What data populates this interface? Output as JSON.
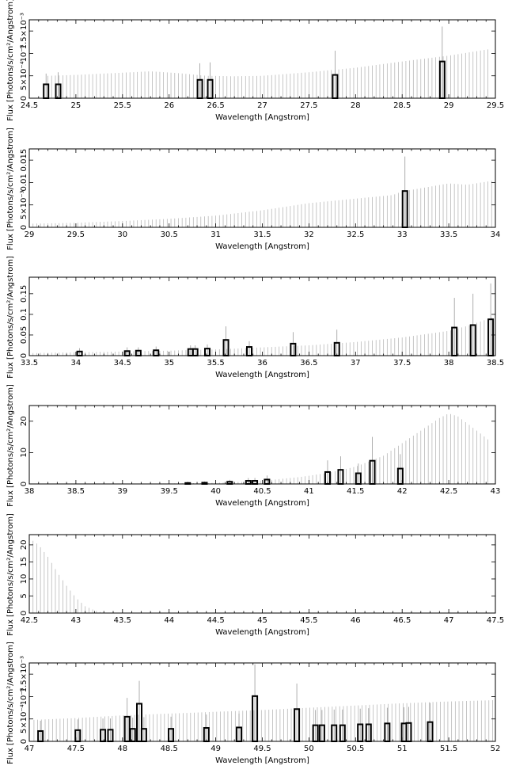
{
  "chart_data": [
    {
      "type": "histogram-with-errorbars",
      "xlabel": "Wavelength [Angstrom]",
      "ylabel": "Flux [Photons/s/cm²/Angstrom]",
      "xlim": [
        24.5,
        29.5
      ],
      "ylim": [
        0,
        0.00175
      ],
      "xticks": [
        {
          "v": 24.5,
          "t": "24.5"
        },
        {
          "v": 25,
          "t": "25"
        },
        {
          "v": 25.5,
          "t": "25.5"
        },
        {
          "v": 26,
          "t": "26"
        },
        {
          "v": 26.5,
          "t": "26.5"
        },
        {
          "v": 27,
          "t": "27"
        },
        {
          "v": 27.5,
          "t": "27.5"
        },
        {
          "v": 28,
          "t": "28"
        },
        {
          "v": 28.5,
          "t": "28.5"
        },
        {
          "v": 29,
          "t": "29"
        },
        {
          "v": 29.5,
          "t": "29.5"
        }
      ],
      "yticks": [
        {
          "v": 0,
          "t": "0"
        },
        {
          "v": 0.0005,
          "t": "5×10⁻⁴"
        },
        {
          "v": 0.001,
          "t": "10⁻³"
        },
        {
          "v": 0.0015,
          "t": "1.5×10⁻³"
        }
      ],
      "error_envelope": [
        [
          24.7,
          0.0005
        ],
        [
          25.0,
          0.00052
        ],
        [
          25.5,
          0.00057
        ],
        [
          25.8,
          0.0006
        ],
        [
          26.1,
          0.00056
        ],
        [
          26.4,
          0.0005
        ],
        [
          26.7,
          0.00049
        ],
        [
          27.0,
          0.0005
        ],
        [
          27.5,
          0.00058
        ],
        [
          28.0,
          0.00068
        ],
        [
          28.5,
          0.00082
        ],
        [
          29.0,
          0.00095
        ],
        [
          29.45,
          0.0011
        ]
      ],
      "detections": [
        {
          "x": 24.68,
          "y": 0.00031,
          "err": 0.00055
        },
        {
          "x": 24.81,
          "y": 0.00031,
          "err": 0.00058
        },
        {
          "x": 26.33,
          "y": 0.00041,
          "err": 0.00078
        },
        {
          "x": 26.44,
          "y": 0.00041,
          "err": 0.0008
        },
        {
          "x": 27.78,
          "y": 0.00052,
          "err": 0.00106
        },
        {
          "x": 28.93,
          "y": 0.00082,
          "err": 0.0016
        }
      ]
    },
    {
      "type": "histogram-with-errorbars",
      "xlabel": "Wavelength [Angstrom]",
      "ylabel": "Flux [Photons/s/cm²/Angstrom]",
      "xlim": [
        29,
        34
      ],
      "ylim": [
        0,
        0.0175
      ],
      "xticks": [
        {
          "v": 29,
          "t": "29"
        },
        {
          "v": 29.5,
          "t": "29.5"
        },
        {
          "v": 30,
          "t": "30"
        },
        {
          "v": 30.5,
          "t": "30.5"
        },
        {
          "v": 31,
          "t": "31"
        },
        {
          "v": 31.5,
          "t": "31.5"
        },
        {
          "v": 32,
          "t": "32"
        },
        {
          "v": 32.5,
          "t": "32.5"
        },
        {
          "v": 33,
          "t": "33"
        },
        {
          "v": 33.5,
          "t": "33.5"
        },
        {
          "v": 34,
          "t": "34"
        }
      ],
      "yticks": [
        {
          "v": 0,
          "t": "0"
        },
        {
          "v": 0.005,
          "t": "5×10⁻³"
        },
        {
          "v": 0.01,
          "t": "0.01"
        },
        {
          "v": 0.015,
          "t": "0.015"
        }
      ],
      "error_envelope": [
        [
          29.0,
          0.0008
        ],
        [
          29.5,
          0.001
        ],
        [
          30.0,
          0.0014
        ],
        [
          30.5,
          0.0019
        ],
        [
          31.0,
          0.0026
        ],
        [
          31.5,
          0.0038
        ],
        [
          32.0,
          0.0054
        ],
        [
          32.5,
          0.0064
        ],
        [
          32.9,
          0.0072
        ],
        [
          33.0,
          0.008
        ],
        [
          33.5,
          0.0098
        ],
        [
          33.7,
          0.0095
        ],
        [
          34.0,
          0.0105
        ]
      ],
      "detections": [
        {
          "x": 33.03,
          "y": 0.0081,
          "err": 0.0158
        }
      ]
    },
    {
      "type": "histogram-with-errorbars",
      "xlabel": "Wavelength [Angstrom]",
      "ylabel": "Flux [Photons/s/cm²/Angstrom]",
      "xlim": [
        33.5,
        38.5
      ],
      "ylim": [
        0,
        0.19
      ],
      "xticks": [
        {
          "v": 33.5,
          "t": "33.5"
        },
        {
          "v": 34,
          "t": "34"
        },
        {
          "v": 34.5,
          "t": "34.5"
        },
        {
          "v": 35,
          "t": "35"
        },
        {
          "v": 35.5,
          "t": "35.5"
        },
        {
          "v": 36,
          "t": "36"
        },
        {
          "v": 36.5,
          "t": "36.5"
        },
        {
          "v": 37,
          "t": "37"
        },
        {
          "v": 37.5,
          "t": "37.5"
        },
        {
          "v": 38,
          "t": "38"
        },
        {
          "v": 38.5,
          "t": "38.5"
        }
      ],
      "yticks": [
        {
          "v": 0,
          "t": "0"
        },
        {
          "v": 0.05,
          "t": "0.05"
        },
        {
          "v": 0.1,
          "t": "0.1"
        },
        {
          "v": 0.15,
          "t": "0.15"
        }
      ],
      "error_envelope": [
        [
          33.5,
          0.006
        ],
        [
          34.0,
          0.008
        ],
        [
          34.5,
          0.01
        ],
        [
          35.0,
          0.012
        ],
        [
          35.5,
          0.015
        ],
        [
          36.0,
          0.02
        ],
        [
          36.5,
          0.025
        ],
        [
          37.0,
          0.033
        ],
        [
          37.5,
          0.044
        ],
        [
          38.0,
          0.06
        ],
        [
          38.2,
          0.072
        ],
        [
          38.5,
          0.095
        ]
      ],
      "detections": [
        {
          "x": 34.04,
          "y": 0.01,
          "err": 0.018
        },
        {
          "x": 34.55,
          "y": 0.011,
          "err": 0.02
        },
        {
          "x": 34.67,
          "y": 0.012,
          "err": 0.02
        },
        {
          "x": 34.86,
          "y": 0.013,
          "err": 0.022
        },
        {
          "x": 35.23,
          "y": 0.016,
          "err": 0.025
        },
        {
          "x": 35.28,
          "y": 0.016,
          "err": 0.025
        },
        {
          "x": 35.41,
          "y": 0.017,
          "err": 0.027
        },
        {
          "x": 35.61,
          "y": 0.038,
          "err": 0.071
        },
        {
          "x": 35.86,
          "y": 0.021,
          "err": 0.035
        },
        {
          "x": 36.33,
          "y": 0.029,
          "err": 0.057
        },
        {
          "x": 36.8,
          "y": 0.031,
          "err": 0.063
        },
        {
          "x": 38.06,
          "y": 0.068,
          "err": 0.14
        },
        {
          "x": 38.26,
          "y": 0.074,
          "err": 0.15
        },
        {
          "x": 38.45,
          "y": 0.088,
          "err": 0.175
        }
      ]
    },
    {
      "type": "histogram-with-errorbars",
      "xlabel": "Wavelength [Angstrom]",
      "ylabel": "Flux [Photons/s/cm²/Angstrom]",
      "xlim": [
        38,
        43
      ],
      "ylim": [
        0,
        25
      ],
      "xticks": [
        {
          "v": 38,
          "t": "38"
        },
        {
          "v": 38.5,
          "t": "38.5"
        },
        {
          "v": 39,
          "t": "39"
        },
        {
          "v": 39.5,
          "t": "39.5"
        },
        {
          "v": 40,
          "t": "40"
        },
        {
          "v": 40.5,
          "t": "40.5"
        },
        {
          "v": 41,
          "t": "41"
        },
        {
          "v": 41.5,
          "t": "41.5"
        },
        {
          "v": 42,
          "t": "42"
        },
        {
          "v": 42.5,
          "t": "42.5"
        },
        {
          "v": 43,
          "t": "43"
        }
      ],
      "yticks": [
        {
          "v": 0,
          "t": "0"
        },
        {
          "v": 10,
          "t": "10"
        },
        {
          "v": 20,
          "t": "20"
        }
      ],
      "error_envelope": [
        [
          38.0,
          0.05
        ],
        [
          39.0,
          0.08
        ],
        [
          39.5,
          0.15
        ],
        [
          40.0,
          0.35
        ],
        [
          40.3,
          0.7
        ],
        [
          40.6,
          1.3
        ],
        [
          40.9,
          2.2
        ],
        [
          41.2,
          3.5
        ],
        [
          41.5,
          5.5
        ],
        [
          41.8,
          9.0
        ],
        [
          42.0,
          13.0
        ],
        [
          42.2,
          17.0
        ],
        [
          42.4,
          21.0
        ],
        [
          42.5,
          22.5
        ],
        [
          42.6,
          21.5
        ],
        [
          42.8,
          17.0
        ],
        [
          42.95,
          13.5
        ]
      ],
      "detections": [
        {
          "x": 39.7,
          "y": 0.3,
          "err": 0.6
        },
        {
          "x": 39.88,
          "y": 0.4,
          "err": 0.8
        },
        {
          "x": 40.15,
          "y": 0.7,
          "err": 1.3
        },
        {
          "x": 40.35,
          "y": 1.0,
          "err": 1.9
        },
        {
          "x": 40.42,
          "y": 1.0,
          "err": 1.9
        },
        {
          "x": 40.55,
          "y": 1.4,
          "err": 2.7
        },
        {
          "x": 41.2,
          "y": 3.8,
          "err": 7.5
        },
        {
          "x": 41.34,
          "y": 4.5,
          "err": 8.8
        },
        {
          "x": 41.53,
          "y": 3.4,
          "err": 6.5
        },
        {
          "x": 41.68,
          "y": 7.4,
          "err": 15.0
        },
        {
          "x": 41.98,
          "y": 4.9,
          "err": 9.5
        }
      ]
    },
    {
      "type": "histogram-with-errorbars",
      "xlabel": "Wavelength [Angstrom]",
      "ylabel": "Flux [Photons/s/cm²/Angstrom]",
      "xlim": [
        42.5,
        47.5
      ],
      "ylim": [
        0,
        23
      ],
      "xticks": [
        {
          "v": 42.5,
          "t": "42.5"
        },
        {
          "v": 43,
          "t": "43"
        },
        {
          "v": 43.5,
          "t": "43.5"
        },
        {
          "v": 44,
          "t": "44"
        },
        {
          "v": 44.5,
          "t": "44.5"
        },
        {
          "v": 45,
          "t": "45"
        },
        {
          "v": 45.5,
          "t": "45.5"
        },
        {
          "v": 46,
          "t": "46"
        },
        {
          "v": 46.5,
          "t": "46.5"
        },
        {
          "v": 47,
          "t": "47"
        },
        {
          "v": 47.5,
          "t": "47.5"
        }
      ],
      "yticks": [
        {
          "v": 0,
          "t": "0"
        },
        {
          "v": 5,
          "t": "5"
        },
        {
          "v": 10,
          "t": "10"
        },
        {
          "v": 15,
          "t": "15"
        },
        {
          "v": 20,
          "t": "20"
        }
      ],
      "error_envelope": [
        [
          42.5,
          22.0
        ],
        [
          42.6,
          20.0
        ],
        [
          42.7,
          16.5
        ],
        [
          42.8,
          12.0
        ],
        [
          42.9,
          8.0
        ],
        [
          43.0,
          4.5
        ],
        [
          43.1,
          2.0
        ],
        [
          43.2,
          0.8
        ],
        [
          43.3,
          0.0
        ]
      ],
      "detections": []
    },
    {
      "type": "histogram-with-errorbars",
      "xlabel": "Wavelength [Angstrom]",
      "ylabel": "Flux [Photons/s/cm²/Angstrom]",
      "xlim": [
        47,
        52
      ],
      "ylim": [
        0,
        0.00175
      ],
      "xticks": [
        {
          "v": 47,
          "t": "47"
        },
        {
          "v": 47.5,
          "t": "47.5"
        },
        {
          "v": 48,
          "t": "48"
        },
        {
          "v": 48.5,
          "t": "48.5"
        },
        {
          "v": 49,
          "t": "49"
        },
        {
          "v": 49.5,
          "t": "49.5"
        },
        {
          "v": 50,
          "t": "50"
        },
        {
          "v": 50.5,
          "t": "50.5"
        },
        {
          "v": 51,
          "t": "51"
        },
        {
          "v": 51.5,
          "t": "51.5"
        },
        {
          "v": 52,
          "t": "52"
        }
      ],
      "yticks": [
        {
          "v": 0,
          "t": "0"
        },
        {
          "v": 0.0005,
          "t": "5×10⁻⁴"
        },
        {
          "v": 0.001,
          "t": "10⁻³"
        },
        {
          "v": 0.0015,
          "t": "1.5×10⁻³"
        }
      ],
      "error_envelope": [
        [
          47.05,
          0.00048
        ],
        [
          47.5,
          0.00052
        ],
        [
          48.0,
          0.00058
        ],
        [
          48.5,
          0.00062
        ],
        [
          49.0,
          0.00066
        ],
        [
          49.5,
          0.0007
        ],
        [
          50.0,
          0.00075
        ],
        [
          50.5,
          0.0008
        ],
        [
          51.0,
          0.00085
        ],
        [
          51.5,
          0.00089
        ],
        [
          52.0,
          0.00092
        ]
      ],
      "detections": [
        {
          "x": 47.12,
          "y": 0.00023,
          "err": 0.00046
        },
        {
          "x": 47.52,
          "y": 0.00025,
          "err": 0.00049
        },
        {
          "x": 47.79,
          "y": 0.00026,
          "err": 0.00051
        },
        {
          "x": 47.87,
          "y": 0.00026,
          "err": 0.00051
        },
        {
          "x": 48.05,
          "y": 0.00055,
          "err": 0.00097
        },
        {
          "x": 48.11,
          "y": 0.00028,
          "err": 0.00053
        },
        {
          "x": 48.18,
          "y": 0.00084,
          "err": 0.00135
        },
        {
          "x": 48.23,
          "y": 0.00028,
          "err": 0.00054
        },
        {
          "x": 48.52,
          "y": 0.00028,
          "err": 0.00055
        },
        {
          "x": 48.9,
          "y": 0.0003,
          "err": 0.0006
        },
        {
          "x": 49.25,
          "y": 0.00031,
          "err": 0.00062
        },
        {
          "x": 49.42,
          "y": 0.00101,
          "err": 0.00172
        },
        {
          "x": 49.87,
          "y": 0.00072,
          "err": 0.00129
        },
        {
          "x": 50.07,
          "y": 0.00036,
          "err": 0.0007
        },
        {
          "x": 50.14,
          "y": 0.00036,
          "err": 0.0007
        },
        {
          "x": 50.27,
          "y": 0.00036,
          "err": 0.00071
        },
        {
          "x": 50.36,
          "y": 0.00036,
          "err": 0.00071
        },
        {
          "x": 50.55,
          "y": 0.00038,
          "err": 0.00073
        },
        {
          "x": 50.64,
          "y": 0.00038,
          "err": 0.00074
        },
        {
          "x": 50.84,
          "y": 0.0004,
          "err": 0.00075
        },
        {
          "x": 51.02,
          "y": 0.0004,
          "err": 0.00076
        },
        {
          "x": 51.07,
          "y": 0.00041,
          "err": 0.00077
        },
        {
          "x": 51.3,
          "y": 0.00043,
          "err": 0.00086
        }
      ]
    }
  ]
}
